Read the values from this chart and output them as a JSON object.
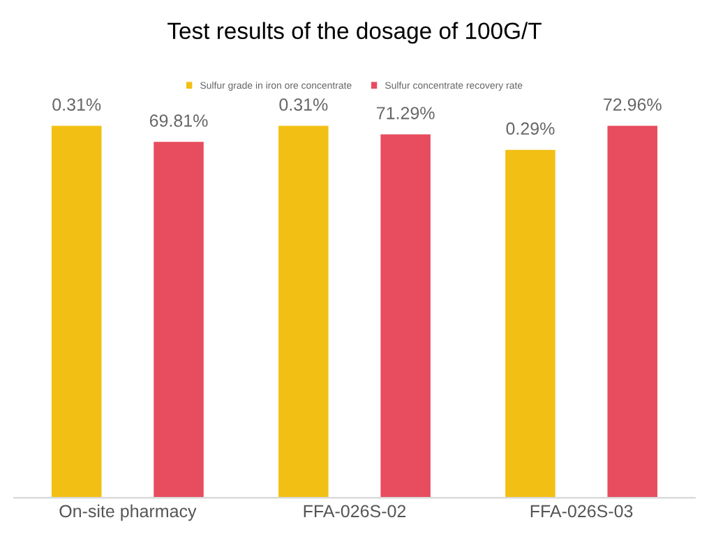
{
  "chart_data": {
    "type": "bar",
    "title": "Test results of the dosage of 100G/T",
    "categories": [
      "On-site pharmacy",
      "FFA-026S-02",
      "FFA-026S-03"
    ],
    "series": [
      {
        "name": "Sulfur grade in iron ore concentrate",
        "color": "#f2c014",
        "values": [
          0.31,
          0.31,
          0.29
        ],
        "axis": "y2",
        "value_labels": [
          "0.31%",
          "0.31%",
          "0.29%"
        ]
      },
      {
        "name": "Sulfur concentrate recovery rate",
        "color": "#e84c5f",
        "values": [
          69.81,
          71.29,
          72.96
        ],
        "value_labels": [
          "69.81%",
          "71.29%",
          "72.96%"
        ]
      }
    ],
    "tick_labels": "x",
    "legend": "top",
    "grid": false
  }
}
